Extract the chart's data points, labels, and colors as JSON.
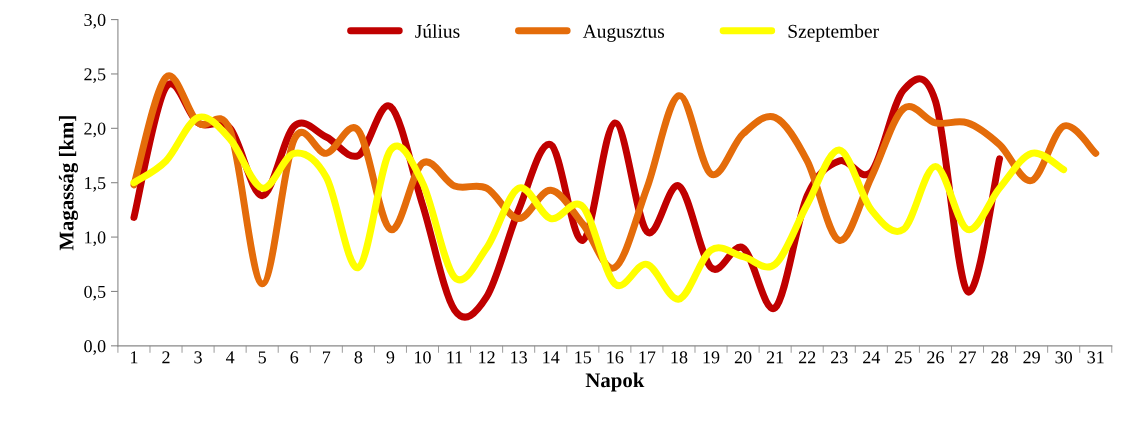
{
  "chart_data": {
    "type": "line",
    "xlabel": "Napok",
    "ylabel": "Magasság [km]",
    "categories": [
      "1",
      "2",
      "3",
      "4",
      "5",
      "6",
      "7",
      "8",
      "9",
      "10",
      "11",
      "12",
      "13",
      "14",
      "15",
      "16",
      "17",
      "18",
      "19",
      "20",
      "21",
      "22",
      "23",
      "24",
      "25",
      "26",
      "27",
      "28",
      "29",
      "30",
      "31"
    ],
    "ylim": [
      0,
      3
    ],
    "yticks": [
      {
        "value": 0,
        "label": "0,0"
      },
      {
        "value": 0.5,
        "label": "0,5"
      },
      {
        "value": 1,
        "label": "1,0"
      },
      {
        "value": 1.5,
        "label": "1,5"
      },
      {
        "value": 2,
        "label": "2,0"
      },
      {
        "value": 2.5,
        "label": "2,5"
      },
      {
        "value": 3,
        "label": "3,0"
      }
    ],
    "grid": false,
    "legend": "top",
    "marker": "none",
    "line_style": "solid",
    "series": [
      {
        "name": "Július",
        "color": "#c00000",
        "values": [
          1.18,
          2.38,
          2.05,
          2.0,
          1.38,
          2.02,
          1.92,
          1.75,
          2.2,
          1.3,
          0.33,
          0.45,
          1.25,
          1.85,
          0.97,
          2.05,
          1.05,
          1.47,
          0.72,
          0.9,
          0.35,
          1.38,
          1.7,
          1.6,
          2.35,
          2.25,
          0.5,
          1.72,
          null,
          null,
          null
        ]
      },
      {
        "name": "Augusztus",
        "color": "#e46c0a",
        "values": [
          1.48,
          2.47,
          2.05,
          1.98,
          0.57,
          1.9,
          1.77,
          1.98,
          1.07,
          1.68,
          1.47,
          1.45,
          1.17,
          1.43,
          1.12,
          0.72,
          1.45,
          2.3,
          1.58,
          1.95,
          2.1,
          1.7,
          0.97,
          1.55,
          2.18,
          2.05,
          2.05,
          1.85,
          1.52,
          2.02,
          1.77
        ]
      },
      {
        "name": "Szeptember",
        "color": "#ffff00",
        "values": [
          1.5,
          1.7,
          2.1,
          1.9,
          1.45,
          1.77,
          1.55,
          0.72,
          1.8,
          1.5,
          0.63,
          0.9,
          1.45,
          1.17,
          1.28,
          0.57,
          0.75,
          0.43,
          0.88,
          0.82,
          0.75,
          1.3,
          1.8,
          1.25,
          1.07,
          1.65,
          1.07,
          1.45,
          1.77,
          1.62,
          null
        ]
      }
    ]
  }
}
